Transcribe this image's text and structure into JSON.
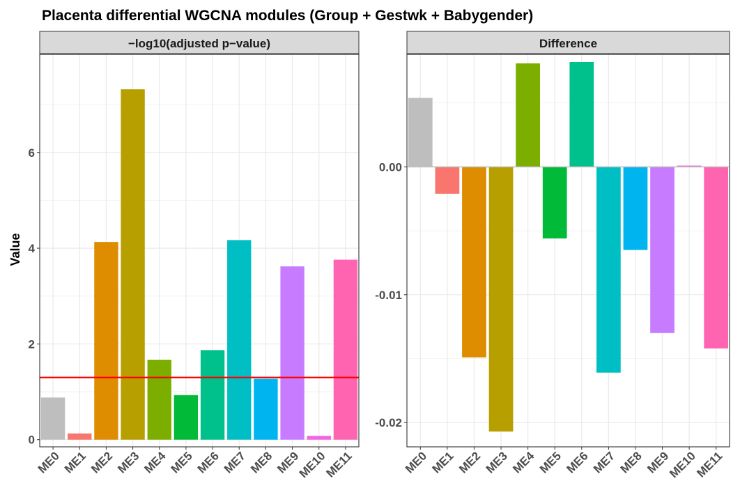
{
  "chart_data": {
    "type": "bar",
    "title": "Placenta differential WGCNA modules (Group + Gestwk + Babygender)",
    "ylabel": "Value",
    "xlabel": "",
    "categories": [
      "ME0",
      "ME1",
      "ME2",
      "ME3",
      "ME4",
      "ME5",
      "ME6",
      "ME7",
      "ME8",
      "ME9",
      "ME10",
      "ME11"
    ],
    "colors": [
      "#BEBEBE",
      "#F8766D",
      "#DE8C00",
      "#B79F00",
      "#7CAE00",
      "#00BA38",
      "#00C08B",
      "#00BFC4",
      "#00B4F0",
      "#C77CFF",
      "#F564E3",
      "#FF64B0"
    ],
    "panels": [
      {
        "label": "−log10(adjusted p−value)",
        "values": [
          0.88,
          0.13,
          4.13,
          7.32,
          1.67,
          0.93,
          1.87,
          4.17,
          1.27,
          3.62,
          0.08,
          3.76
        ],
        "ylim": [
          -0.15,
          8.05
        ],
        "yticks": [
          0,
          2,
          4,
          6
        ],
        "ytick_labels": [
          "0",
          "2",
          "4",
          "6"
        ],
        "hline": 1.3,
        "hline_color": "#FF0000"
      },
      {
        "label": "Difference",
        "values": [
          0.0054,
          -0.0021,
          -0.0149,
          -0.0207,
          0.0081,
          -0.0056,
          0.0082,
          -0.0161,
          -0.0065,
          -0.013,
          0.0001,
          -0.0142
        ],
        "ylim": [
          -0.0219,
          0.0088
        ],
        "yticks": [
          -0.02,
          -0.01,
          0.0
        ],
        "ytick_labels": [
          "-0.02",
          "-0.01",
          "0.00"
        ],
        "hline": 0,
        "hline_color": "#BEBEBE"
      }
    ]
  }
}
